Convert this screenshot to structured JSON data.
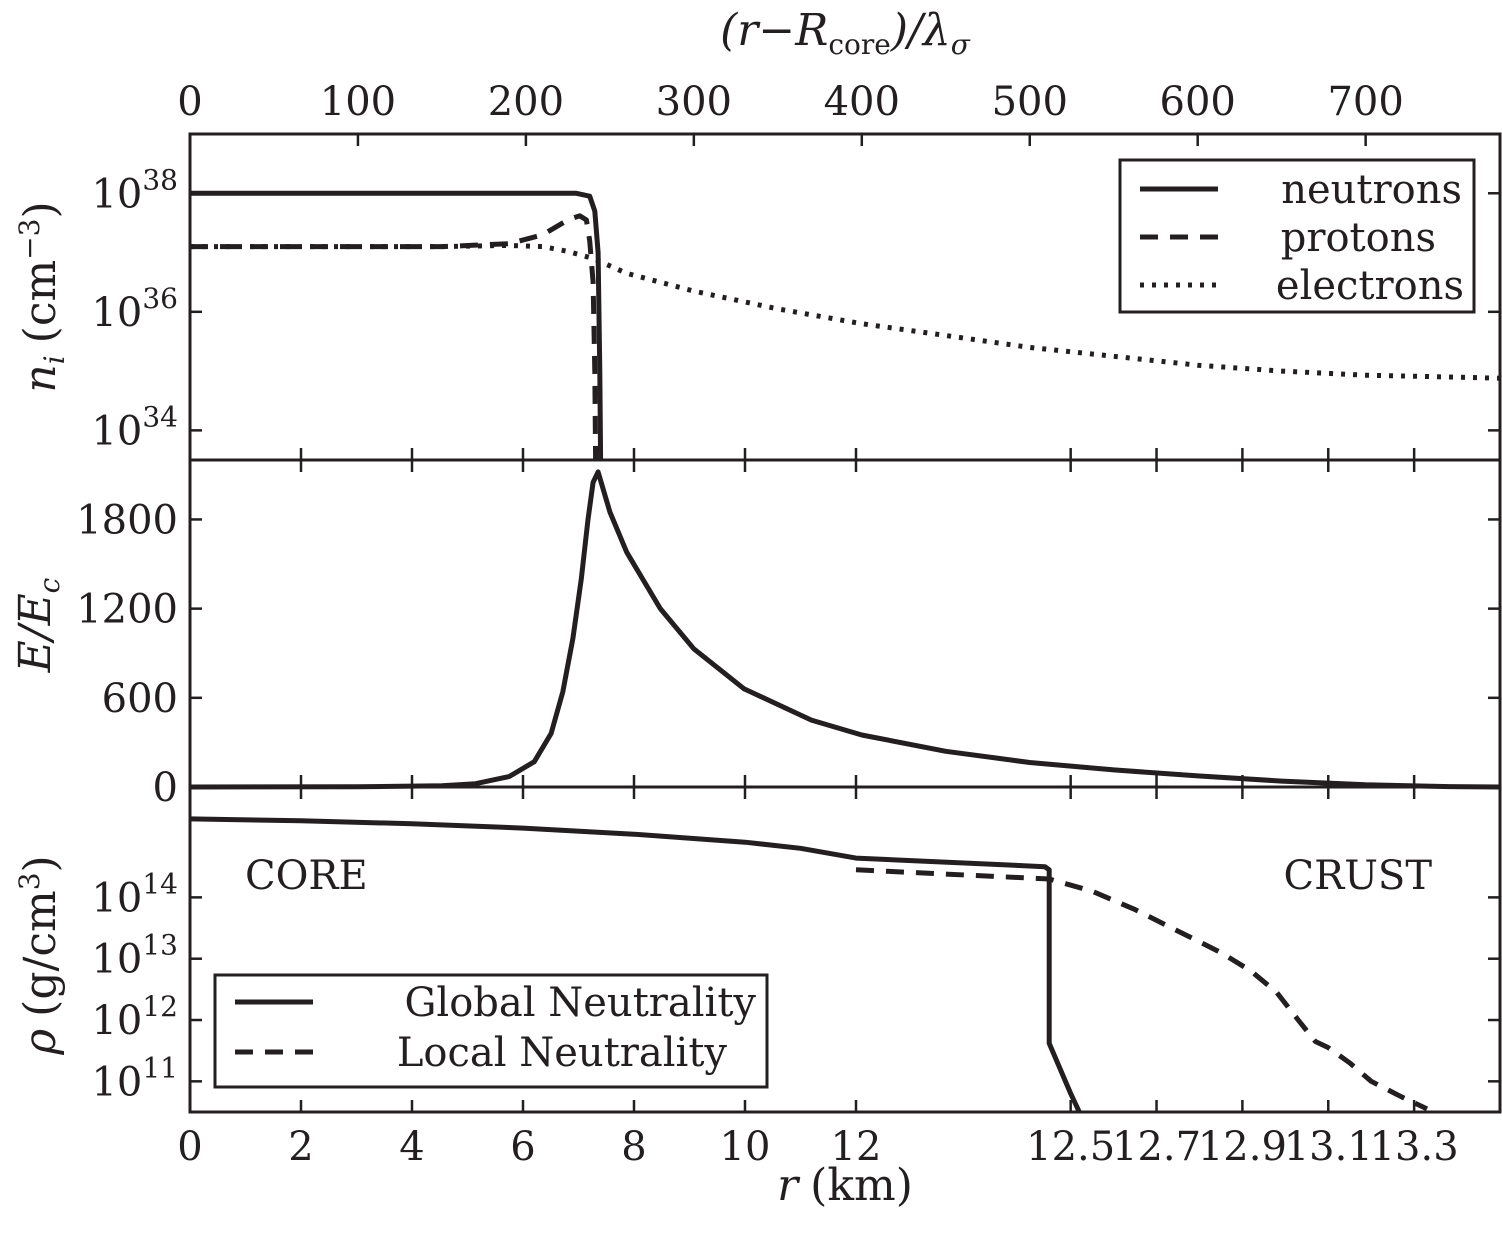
{
  "chart_data": [
    {
      "panel": "top",
      "type": "line",
      "ylabel": "n_i (cm^-3)",
      "ylabel_main": "n",
      "ylabel_sub": "i",
      "ylabel_unit": "(cm",
      "ylabel_exp": "−3",
      "ylabel_close": ")",
      "yscale": "log",
      "ylim": [
        33.5,
        39.0
      ],
      "yticks": [
        {
          "base": "10",
          "exp": "38",
          "value": 38
        },
        {
          "base": "10",
          "exp": "36",
          "value": 36
        },
        {
          "base": "10",
          "exp": "34",
          "value": 34
        }
      ],
      "top_axis": {
        "label_open": "(r−R",
        "label_sub": "core",
        "label_mid": ")/λ",
        "label_sub2": "σ",
        "ticks": [
          "0",
          "100",
          "200",
          "300",
          "400",
          "500",
          "600",
          "700"
        ],
        "range": [
          0,
          780
        ]
      },
      "legend": [
        "neutrons",
        "protons",
        "electrons"
      ],
      "series": [
        {
          "name": "neutrons",
          "style": "solid",
          "x": [
            0,
            50,
            100,
            150,
            200,
            230,
            238,
            241,
            243,
            244,
            244.5
          ],
          "y": [
            38.0,
            38.0,
            38.0,
            38.0,
            38.0,
            38.0,
            37.95,
            37.7,
            37.0,
            35.0,
            33.5
          ]
        },
        {
          "name": "protons",
          "style": "dashed",
          "x": [
            0,
            50,
            100,
            150,
            190,
            210,
            225,
            232,
            236,
            238,
            240,
            241,
            241.5
          ],
          "y": [
            37.1,
            37.1,
            37.1,
            37.1,
            37.15,
            37.3,
            37.55,
            37.62,
            37.55,
            37.2,
            36.5,
            35.0,
            33.5
          ]
        },
        {
          "name": "electrons",
          "style": "dotted",
          "x": [
            0,
            50,
            100,
            150,
            190,
            210,
            225,
            240,
            260,
            300,
            350,
            400,
            450,
            500,
            550,
            600,
            650,
            700,
            750,
            780
          ],
          "y": [
            37.1,
            37.1,
            37.1,
            37.1,
            37.12,
            37.1,
            37.02,
            36.9,
            36.65,
            36.35,
            36.05,
            35.8,
            35.6,
            35.4,
            35.25,
            35.1,
            35.0,
            34.93,
            34.9,
            34.88
          ]
        }
      ]
    },
    {
      "panel": "middle",
      "type": "line",
      "ylabel": "E/E_c",
      "ylabel_main": "E/E",
      "ylabel_sub": "c",
      "ylim": [
        0,
        2200
      ],
      "yticks": [
        "0",
        "600",
        "1200",
        "1800"
      ],
      "series": [
        {
          "name": "E/Ec",
          "style": "solid",
          "x": [
            0,
            100,
            150,
            170,
            190,
            205,
            215,
            222,
            228,
            233,
            237,
            240,
            243,
            250,
            260,
            280,
            300,
            330,
            370,
            400,
            450,
            500,
            550,
            600,
            650,
            700,
            750,
            780
          ],
          "y": [
            0,
            2,
            8,
            22,
            70,
            170,
            360,
            640,
            1000,
            1400,
            1800,
            2050,
            2120,
            1850,
            1580,
            1200,
            930,
            660,
            450,
            350,
            240,
            165,
            115,
            75,
            40,
            15,
            3,
            0
          ]
        }
      ]
    },
    {
      "panel": "bottom",
      "type": "line",
      "ylabel": "ρ (g/cm^3)",
      "ylabel_main": "ρ",
      "ylabel_unit": "(g/cm",
      "ylabel_exp": "3",
      "ylabel_close": ")",
      "yscale": "log",
      "ylim": [
        10.5,
        15.8
      ],
      "yticks": [
        {
          "base": "10",
          "exp": "14",
          "value": 14
        },
        {
          "base": "10",
          "exp": "13",
          "value": 13
        },
        {
          "base": "10",
          "exp": "12",
          "value": 12
        },
        {
          "base": "10",
          "exp": "11",
          "value": 11
        }
      ],
      "xlabel_var": "r",
      "xlabel_unit": "(km)",
      "xticks": [
        "0",
        "2",
        "4",
        "6",
        "8",
        "10",
        "12",
        "12.5",
        "12.7",
        "12.9",
        "13.1",
        "13.3"
      ],
      "xtick_positions": [
        0,
        2,
        4,
        6,
        8,
        10,
        12,
        12.5,
        12.7,
        12.9,
        13.1,
        13.3
      ],
      "text_labels": [
        "CORE",
        "CRUST"
      ],
      "legend": [
        "Global Neutrality",
        "Local Neutrality"
      ],
      "series": [
        {
          "name": "Global Neutrality",
          "style": "solid",
          "x": [
            0,
            2,
            4,
            6,
            8,
            10,
            11,
            12.0,
            12.44,
            12.45,
            12.45,
            12.5,
            12.52
          ],
          "y": [
            15.28,
            15.25,
            15.2,
            15.13,
            15.03,
            14.9,
            14.8,
            14.64,
            14.5,
            14.45,
            11.62,
            10.8,
            10.5
          ]
        },
        {
          "name": "Local Neutrality",
          "style": "dashed",
          "x": [
            12.0,
            12.45,
            12.55,
            12.65,
            12.75,
            12.85,
            12.92,
            12.98,
            13.03,
            13.07,
            13.1,
            13.15,
            13.2,
            13.27,
            13.33
          ],
          "y": [
            14.45,
            14.3,
            14.1,
            13.8,
            13.45,
            13.1,
            12.8,
            12.45,
            12.0,
            11.65,
            11.55,
            11.3,
            11.0,
            10.75,
            10.55
          ]
        }
      ]
    }
  ]
}
